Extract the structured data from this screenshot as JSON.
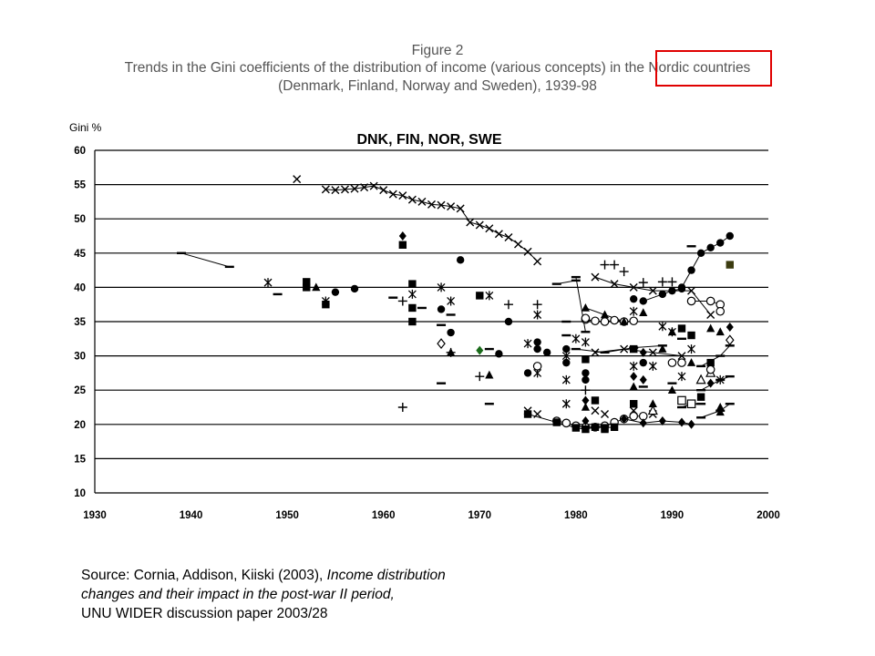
{
  "figure": {
    "label": "Figure 2",
    "title": "Trends in the Gini coefficients of the distribution of income (various concepts) in the Nordic countries",
    "subtitle": "(Denmark, Finland, Norway and Sweden), 1939-98",
    "highlight_text": "Nordic countries",
    "highlight_color": "#e00000"
  },
  "chart_data": {
    "type": "scatter",
    "title": "DNK, FIN, NOR, SWE",
    "ylabel": "Gini %",
    "xlabel": "",
    "xlim": [
      1930,
      2000
    ],
    "ylim": [
      10,
      60
    ],
    "xticks": [
      "1930",
      "1940",
      "1950",
      "1960",
      "1970",
      "1980",
      "1990",
      "2000"
    ],
    "yticks": [
      "10",
      "15",
      "20",
      "25",
      "30",
      "35",
      "40",
      "45",
      "50",
      "55",
      "60"
    ],
    "grid": "horizontal",
    "highlight_colors": {
      "green": "#1a6b1a",
      "olive": "#3b3b10"
    },
    "lines": [
      {
        "marker": "x",
        "points": [
          [
            1954,
            54.3
          ],
          [
            1955,
            54.2
          ],
          [
            1956,
            54.3
          ],
          [
            1957,
            54.4
          ],
          [
            1958,
            54.6
          ],
          [
            1959,
            54.8
          ],
          [
            1960,
            54.2
          ],
          [
            1961,
            53.6
          ],
          [
            1962,
            53.4
          ],
          [
            1963,
            52.8
          ],
          [
            1964,
            52.5
          ],
          [
            1965,
            52.1
          ],
          [
            1966,
            52.0
          ],
          [
            1967,
            51.8
          ],
          [
            1968,
            51.5
          ],
          [
            1969,
            49.5
          ],
          [
            1970,
            49.1
          ],
          [
            1971,
            48.6
          ],
          [
            1972,
            47.8
          ],
          [
            1973,
            47.3
          ],
          [
            1974,
            46.3
          ],
          [
            1975,
            45.2
          ],
          [
            1976,
            43.8
          ]
        ]
      },
      {
        "marker": "dash",
        "points": [
          [
            1939,
            45.0
          ],
          [
            1944,
            43.0
          ]
        ]
      },
      {
        "marker": "circle",
        "points": [
          [
            1991,
            40.0
          ],
          [
            1992,
            42.5
          ],
          [
            1993,
            45.0
          ],
          [
            1994,
            45.8
          ],
          [
            1995,
            46.5
          ],
          [
            1996,
            47.5
          ]
        ]
      },
      {
        "marker": "x",
        "points": [
          [
            1982,
            41.5
          ],
          [
            1984,
            40.5
          ],
          [
            1986,
            40.0
          ],
          [
            1988,
            39.5
          ],
          [
            1992,
            39.5
          ],
          [
            1994,
            36.0
          ]
        ]
      },
      {
        "marker": "open-circle",
        "points": [
          [
            1978,
            20.5
          ],
          [
            1979,
            20.2
          ],
          [
            1980,
            19.8
          ],
          [
            1981,
            19.6
          ],
          [
            1982,
            19.6
          ],
          [
            1983,
            19.8
          ],
          [
            1984,
            20.3
          ],
          [
            1985,
            20.8
          ],
          [
            1986,
            21.2
          ],
          [
            1987,
            21.2
          ]
        ]
      },
      {
        "marker": "square",
        "points": [
          [
            1975,
            21.5
          ],
          [
            1978,
            20.3
          ],
          [
            1980,
            19.5
          ],
          [
            1981,
            19.3
          ],
          [
            1982,
            19.6
          ],
          [
            1983,
            19.5
          ],
          [
            1984,
            19.6
          ]
        ]
      },
      {
        "marker": "open-circle",
        "points": [
          [
            1981,
            35.3
          ],
          [
            1982,
            35.1
          ],
          [
            1983,
            35.0
          ],
          [
            1984,
            35.2
          ],
          [
            1985,
            35.0
          ],
          [
            1986,
            35.1
          ]
        ]
      },
      {
        "marker": "diamond",
        "points": [
          [
            1985,
            20.8
          ],
          [
            1987,
            20.2
          ],
          [
            1989,
            20.5
          ],
          [
            1991,
            20.3
          ],
          [
            1992,
            20.0
          ]
        ]
      },
      {
        "marker": "dash",
        "points": [
          [
            1978,
            40.5
          ],
          [
            1980,
            41.0
          ]
        ]
      },
      {
        "marker": "dash",
        "points": [
          [
            1980,
            41.5
          ],
          [
            1981,
            33.5
          ]
        ]
      },
      {
        "marker": "circle",
        "points": [
          [
            1987,
            38.0
          ],
          [
            1989,
            39.0
          ],
          [
            1990,
            39.5
          ],
          [
            1991,
            39.8
          ]
        ]
      },
      {
        "marker": "open-circle",
        "points": [
          [
            1992,
            38.0
          ],
          [
            1994,
            38.0
          ],
          [
            1995,
            37.5
          ]
        ]
      },
      {
        "marker": "triangle",
        "points": [
          [
            1981,
            37.0
          ],
          [
            1983,
            36.0
          ],
          [
            1985,
            35.0
          ]
        ]
      },
      {
        "marker": "dash",
        "points": [
          [
            1993,
            21.0
          ],
          [
            1995,
            22.0
          ],
          [
            1996,
            23.0
          ]
        ]
      },
      {
        "marker": "dash",
        "points": [
          [
            1993,
            25.0
          ],
          [
            1995,
            26.5
          ],
          [
            1996,
            27.0
          ]
        ]
      },
      {
        "marker": "dash",
        "points": [
          [
            1993,
            28.5
          ],
          [
            1995,
            30.0
          ],
          [
            1996,
            31.5
          ]
        ]
      },
      {
        "marker": "dash",
        "points": [
          [
            1991,
            22.5
          ],
          [
            1992,
            23.0
          ],
          [
            1993,
            23.0
          ]
        ]
      },
      {
        "marker": "dash",
        "points": [
          [
            1980,
            31.0
          ],
          [
            1983,
            30.5
          ],
          [
            1986,
            31.2
          ],
          [
            1989,
            31.5
          ]
        ]
      },
      {
        "marker": "x",
        "points": [
          [
            1982,
            30.5
          ],
          [
            1985,
            31.0
          ],
          [
            1988,
            30.5
          ],
          [
            1991,
            30.0
          ]
        ]
      }
    ],
    "points": [
      {
        "marker": "x",
        "x": 1951,
        "y": 55.8
      },
      {
        "marker": "asterisk",
        "x": 1948,
        "y": 40.7
      },
      {
        "marker": "dash",
        "x": 1949,
        "y": 39.0
      },
      {
        "marker": "square",
        "x": 1952,
        "y": 40.8
      },
      {
        "marker": "square",
        "x": 1952,
        "y": 40.0
      },
      {
        "marker": "triangle",
        "x": 1953,
        "y": 40.0
      },
      {
        "marker": "asterisk",
        "x": 1954,
        "y": 38.0
      },
      {
        "marker": "square",
        "x": 1954,
        "y": 37.5
      },
      {
        "marker": "circle",
        "x": 1955,
        "y": 39.3
      },
      {
        "marker": "circle",
        "x": 1957,
        "y": 39.8
      },
      {
        "marker": "diamond",
        "x": 1962,
        "y": 47.5
      },
      {
        "marker": "square",
        "x": 1962,
        "y": 46.2
      },
      {
        "marker": "dash",
        "x": 1961,
        "y": 38.5
      },
      {
        "marker": "plus",
        "x": 1962,
        "y": 38.0
      },
      {
        "marker": "square",
        "x": 1963,
        "y": 40.5
      },
      {
        "marker": "asterisk",
        "x": 1963,
        "y": 39.0
      },
      {
        "marker": "square",
        "x": 1963,
        "y": 37.0
      },
      {
        "marker": "square",
        "x": 1963,
        "y": 35.0
      },
      {
        "marker": "dash",
        "x": 1964,
        "y": 37.0
      },
      {
        "marker": "plus",
        "x": 1962,
        "y": 22.5
      },
      {
        "marker": "asterisk",
        "x": 1966,
        "y": 40.0
      },
      {
        "marker": "circle",
        "x": 1966,
        "y": 36.8
      },
      {
        "marker": "asterisk",
        "x": 1967,
        "y": 38.0
      },
      {
        "marker": "dash",
        "x": 1967,
        "y": 36.0
      },
      {
        "marker": "dash",
        "x": 1966,
        "y": 34.5
      },
      {
        "marker": "circle",
        "x": 1967,
        "y": 33.4
      },
      {
        "marker": "open-diamond",
        "x": 1966,
        "y": 31.8
      },
      {
        "marker": "triangle",
        "x": 1967,
        "y": 30.5
      },
      {
        "marker": "plus",
        "x": 1967,
        "y": 30.5
      },
      {
        "marker": "dash",
        "x": 1966,
        "y": 26.0
      },
      {
        "marker": "circle",
        "x": 1968,
        "y": 44.0
      },
      {
        "marker": "square",
        "x": 1970,
        "y": 38.8
      },
      {
        "marker": "asterisk",
        "x": 1971,
        "y": 38.8
      },
      {
        "marker": "diamond",
        "x": 1970,
        "y": 30.8,
        "color": "green"
      },
      {
        "marker": "dash",
        "x": 1971,
        "y": 31.0
      },
      {
        "marker": "plus",
        "x": 1970,
        "y": 27.0
      },
      {
        "marker": "triangle",
        "x": 1971,
        "y": 27.2
      },
      {
        "marker": "circle",
        "x": 1972,
        "y": 30.3
      },
      {
        "marker": "dash",
        "x": 1971,
        "y": 23.0
      },
      {
        "marker": "plus",
        "x": 1973,
        "y": 37.5
      },
      {
        "marker": "circle",
        "x": 1973,
        "y": 35.0
      },
      {
        "marker": "plus",
        "x": 1976,
        "y": 37.5
      },
      {
        "marker": "asterisk",
        "x": 1976,
        "y": 36.0
      },
      {
        "marker": "asterisk",
        "x": 1975,
        "y": 31.8
      },
      {
        "marker": "circle",
        "x": 1976,
        "y": 32.0
      },
      {
        "marker": "circle",
        "x": 1976,
        "y": 31.0
      },
      {
        "marker": "circle",
        "x": 1977,
        "y": 30.5
      },
      {
        "marker": "circle",
        "x": 1975,
        "y": 27.5
      },
      {
        "marker": "asterisk",
        "x": 1976,
        "y": 27.5
      },
      {
        "marker": "open-circle",
        "x": 1976,
        "y": 28.5
      },
      {
        "marker": "x",
        "x": 1975,
        "y": 22.0
      },
      {
        "marker": "x",
        "x": 1976,
        "y": 21.5
      },
      {
        "marker": "plus",
        "x": 1983,
        "y": 43.3
      },
      {
        "marker": "plus",
        "x": 1984,
        "y": 43.3
      },
      {
        "marker": "plus",
        "x": 1985,
        "y": 42.3
      },
      {
        "marker": "plus",
        "x": 1987,
        "y": 40.7
      },
      {
        "marker": "plus",
        "x": 1989,
        "y": 40.8
      },
      {
        "marker": "plus",
        "x": 1990,
        "y": 40.8
      },
      {
        "marker": "dash",
        "x": 1992,
        "y": 46.0
      },
      {
        "marker": "square",
        "x": 1996,
        "y": 43.3,
        "color": "olive"
      },
      {
        "marker": "open-circle",
        "x": 1981,
        "y": 35.5
      },
      {
        "marker": "dash",
        "x": 1979,
        "y": 35.0
      },
      {
        "marker": "dash",
        "x": 1979,
        "y": 33.0
      },
      {
        "marker": "asterisk",
        "x": 1980,
        "y": 32.5
      },
      {
        "marker": "asterisk",
        "x": 1981,
        "y": 32.0
      },
      {
        "marker": "circle",
        "x": 1979,
        "y": 31.0
      },
      {
        "marker": "asterisk",
        "x": 1979,
        "y": 30.0
      },
      {
        "marker": "circle",
        "x": 1979,
        "y": 29.0
      },
      {
        "marker": "square",
        "x": 1981,
        "y": 29.5
      },
      {
        "marker": "asterisk",
        "x": 1979,
        "y": 26.5
      },
      {
        "marker": "circle",
        "x": 1981,
        "y": 27.5
      },
      {
        "marker": "circle",
        "x": 1981,
        "y": 26.5
      },
      {
        "marker": "plus",
        "x": 1981,
        "y": 25.0
      },
      {
        "marker": "asterisk",
        "x": 1979,
        "y": 23.0
      },
      {
        "marker": "square",
        "x": 1982,
        "y": 23.5
      },
      {
        "marker": "diamond",
        "x": 1981,
        "y": 23.5
      },
      {
        "marker": "triangle",
        "x": 1981,
        "y": 22.5
      },
      {
        "marker": "x",
        "x": 1982,
        "y": 22.0
      },
      {
        "marker": "x",
        "x": 1983,
        "y": 21.5
      },
      {
        "marker": "diamond",
        "x": 1981,
        "y": 20.5
      },
      {
        "marker": "square",
        "x": 1983,
        "y": 19.3
      },
      {
        "marker": "circle",
        "x": 1986,
        "y": 38.3
      },
      {
        "marker": "asterisk",
        "x": 1986,
        "y": 36.5
      },
      {
        "marker": "triangle",
        "x": 1987,
        "y": 36.3
      },
      {
        "marker": "square",
        "x": 1986,
        "y": 31.0
      },
      {
        "marker": "diamond",
        "x": 1987,
        "y": 30.5
      },
      {
        "marker": "circle",
        "x": 1987,
        "y": 29.0
      },
      {
        "marker": "asterisk",
        "x": 1986,
        "y": 28.5
      },
      {
        "marker": "asterisk",
        "x": 1988,
        "y": 28.5
      },
      {
        "marker": "diamond",
        "x": 1986,
        "y": 27.0
      },
      {
        "marker": "diamond",
        "x": 1987,
        "y": 26.5
      },
      {
        "marker": "triangle",
        "x": 1986,
        "y": 25.5
      },
      {
        "marker": "dash",
        "x": 1987,
        "y": 25.5
      },
      {
        "marker": "square",
        "x": 1986,
        "y": 23.0
      },
      {
        "marker": "triangle",
        "x": 1988,
        "y": 23.0
      },
      {
        "marker": "x",
        "x": 1986,
        "y": 22.0
      },
      {
        "marker": "x",
        "x": 1988,
        "y": 21.5
      },
      {
        "marker": "open-triangle",
        "x": 1988,
        "y": 22.0
      },
      {
        "marker": "triangle",
        "x": 1989,
        "y": 31.0
      },
      {
        "marker": "triangle",
        "x": 1990,
        "y": 33.5
      },
      {
        "marker": "asterisk",
        "x": 1989,
        "y": 34.3
      },
      {
        "marker": "asterisk",
        "x": 1990,
        "y": 33.5
      },
      {
        "marker": "square",
        "x": 1991,
        "y": 34.0
      },
      {
        "marker": "square",
        "x": 1992,
        "y": 33.0
      },
      {
        "marker": "dash",
        "x": 1991,
        "y": 32.5
      },
      {
        "marker": "asterisk",
        "x": 1992,
        "y": 31.0
      },
      {
        "marker": "open-circle",
        "x": 1990,
        "y": 29.0
      },
      {
        "marker": "open-circle",
        "x": 1991,
        "y": 29.0
      },
      {
        "marker": "triangle",
        "x": 1992,
        "y": 29.0
      },
      {
        "marker": "asterisk",
        "x": 1991,
        "y": 27.0
      },
      {
        "marker": "dash",
        "x": 1990,
        "y": 26.0
      },
      {
        "marker": "triangle",
        "x": 1990,
        "y": 25.0
      },
      {
        "marker": "open-square",
        "x": 1991,
        "y": 23.5
      },
      {
        "marker": "open-square",
        "x": 1992,
        "y": 23.0
      },
      {
        "marker": "square",
        "x": 1993,
        "y": 24.0
      },
      {
        "marker": "open-triangle",
        "x": 1993,
        "y": 26.5
      },
      {
        "marker": "open-triangle",
        "x": 1994,
        "y": 27.5
      },
      {
        "marker": "square",
        "x": 1994,
        "y": 29.0
      },
      {
        "marker": "diamond",
        "x": 1994,
        "y": 26.0
      },
      {
        "marker": "open-circle",
        "x": 1994,
        "y": 28.0
      },
      {
        "marker": "triangle",
        "x": 1994,
        "y": 34.0
      },
      {
        "marker": "triangle",
        "x": 1995,
        "y": 33.5
      },
      {
        "marker": "diamond",
        "x": 1996,
        "y": 34.2
      },
      {
        "marker": "open-diamond",
        "x": 1996,
        "y": 32.3
      },
      {
        "marker": "open-circle",
        "x": 1995,
        "y": 36.5
      },
      {
        "marker": "asterisk",
        "x": 1995,
        "y": 26.5
      },
      {
        "marker": "triangle",
        "x": 1995,
        "y": 22.5
      },
      {
        "marker": "triangle",
        "x": 1995,
        "y": 21.8
      }
    ]
  },
  "source": {
    "prefix": "Source: Cornia, Addison, Kiiski (2003), ",
    "italic_line1": "Income distribution",
    "italic_line2": "changes and their impact in the post-war II period,",
    "line3": "UNU WIDER discussion paper 2003/28"
  }
}
